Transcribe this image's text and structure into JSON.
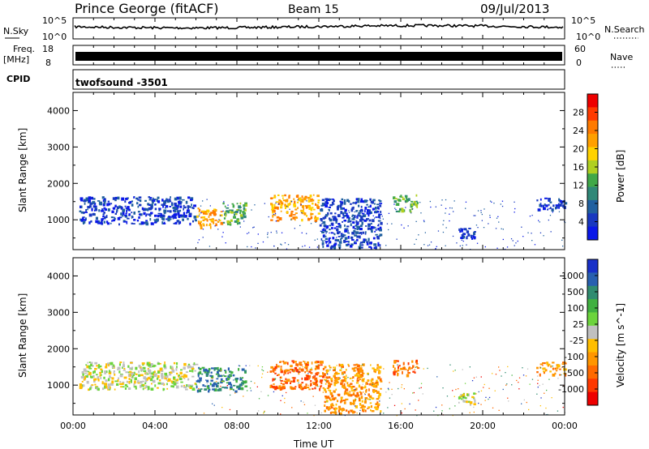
{
  "header": {
    "title": "Prince George (fitACF)",
    "beam": "Beam 15",
    "date": "09/Jul/2013"
  },
  "strips": {
    "nsky": {
      "label": "N.Sky",
      "ticks": [
        "10^5",
        "10^0"
      ],
      "right_label": "N.Search",
      "right_ticks": [
        "10^5",
        "10^0"
      ]
    },
    "freq": {
      "label": "Freq.",
      "unit": "[MHz]",
      "ticks": [
        "18",
        "8"
      ],
      "right_label": "Nave",
      "right_ticks": [
        "60",
        "0"
      ]
    },
    "cpid": {
      "label": "CPID",
      "value": "twofsound -3501"
    }
  },
  "chart_data": [
    {
      "type": "heatmap",
      "title": "",
      "xlabel": "",
      "ylabel": "Slant Range [km]",
      "xlim": [
        0,
        24
      ],
      "ylim": [
        180,
        4500
      ],
      "yticks": [
        "4000",
        "3000",
        "2000",
        "1000"
      ],
      "colorbar": {
        "label": "Power [dB]",
        "ticks": [
          "28",
          "24",
          "20",
          "16",
          "12",
          "8",
          "4"
        ],
        "colors": [
          "#ee0000",
          "#ff3a00",
          "#ff7a00",
          "#ffa000",
          "#ffd200",
          "#b0d020",
          "#40a848",
          "#308878",
          "#2060a0",
          "#1838c0",
          "#0a18e8"
        ]
      },
      "regions": [
        {
          "t0": 0.3,
          "t1": 6.0,
          "r0": 900,
          "r1": 1650,
          "level": 7
        },
        {
          "t0": 6.0,
          "t1": 7.2,
          "r0": 800,
          "r1": 1350,
          "level": 22
        },
        {
          "t0": 7.3,
          "t1": 8.4,
          "r0": 900,
          "r1": 1500,
          "level": 15
        },
        {
          "t0": 9.6,
          "t1": 12.0,
          "r0": 1000,
          "r1": 1700,
          "level": 22
        },
        {
          "t0": 12.0,
          "t1": 15.0,
          "r0": 250,
          "r1": 1600,
          "level": 5
        },
        {
          "t0": 15.6,
          "t1": 16.8,
          "r0": 1250,
          "r1": 1700,
          "level": 14
        },
        {
          "t0": 18.8,
          "t1": 19.6,
          "r0": 500,
          "r1": 800,
          "level": 5
        },
        {
          "t0": 22.6,
          "t1": 24.0,
          "r0": 1300,
          "r1": 1650,
          "level": 6
        }
      ]
    },
    {
      "type": "heatmap",
      "title": "",
      "xlabel": "Time UT",
      "ylabel": "Slant Range [km]",
      "xlim": [
        0,
        24
      ],
      "ylim": [
        180,
        4500
      ],
      "xticks": [
        "00:00",
        "04:00",
        "08:00",
        "12:00",
        "16:00",
        "20:00",
        "00:00"
      ],
      "yticks": [
        "4000",
        "3000",
        "2000",
        "1000"
      ],
      "colorbar": {
        "label": "Velocity [m s^-1]",
        "ticks": [
          "1000",
          "500",
          "100",
          "25",
          "-25",
          "-100",
          "-500",
          "-1000"
        ],
        "colors": [
          "#1830c8",
          "#2860b0",
          "#308c70",
          "#40b040",
          "#6cd43c",
          "#c0c0c0",
          "#ffbe00",
          "#ff9600",
          "#ff6a00",
          "#ff3800",
          "#ee0000"
        ]
      },
      "regions": [
        {
          "t0": 0.3,
          "t1": 6.0,
          "r0": 900,
          "r1": 1650,
          "velocity": 0
        },
        {
          "t0": 6.0,
          "t1": 8.4,
          "r0": 850,
          "r1": 1500,
          "velocity": 120
        },
        {
          "t0": 9.6,
          "t1": 12.2,
          "r0": 900,
          "r1": 1700,
          "velocity": -150
        },
        {
          "t0": 12.2,
          "t1": 15.0,
          "r0": 250,
          "r1": 1600,
          "velocity": -60
        },
        {
          "t0": 15.6,
          "t1": 16.8,
          "r0": 1300,
          "r1": 1700,
          "velocity": -200
        },
        {
          "t0": 18.8,
          "t1": 19.6,
          "r0": 500,
          "r1": 800,
          "velocity": 0
        },
        {
          "t0": 22.6,
          "t1": 24.0,
          "r0": 1300,
          "r1": 1650,
          "velocity": -80
        }
      ]
    }
  ]
}
